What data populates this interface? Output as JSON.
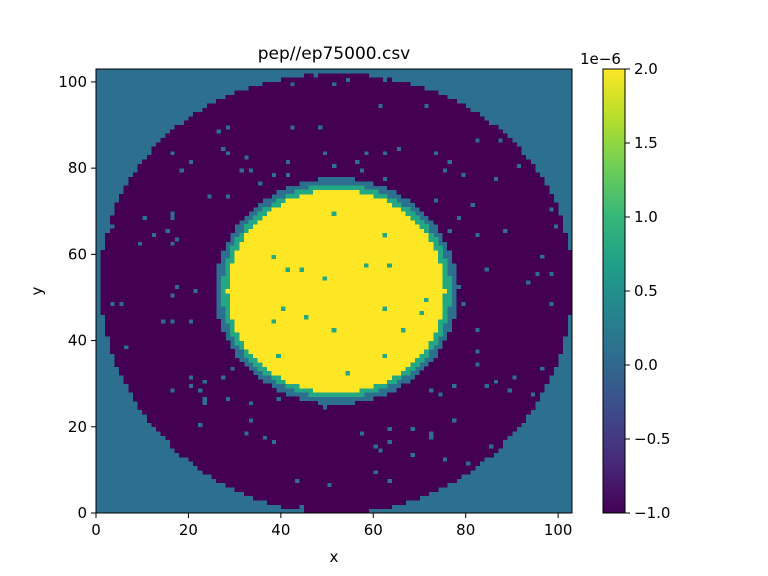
{
  "chart_data": {
    "type": "heatmap",
    "title": "pep//ep75000.csv",
    "xlabel": "x",
    "ylabel": "y",
    "xlim": [
      0,
      103
    ],
    "ylim": [
      0,
      103
    ],
    "x_ticks": [
      0,
      20,
      40,
      60,
      80,
      100
    ],
    "y_ticks": [
      0,
      20,
      40,
      60,
      80,
      100
    ],
    "x_tick_labels": [
      "0",
      "20",
      "40",
      "60",
      "80",
      "100"
    ],
    "y_tick_labels": [
      "0",
      "20",
      "40",
      "60",
      "80",
      "100"
    ],
    "colormap": "viridis",
    "colorbar": {
      "range": [
        -1.0,
        2.0
      ],
      "multiplier_label": "1e−6",
      "ticks": [
        -1.0,
        -0.5,
        0.0,
        0.5,
        1.0,
        1.5,
        2.0
      ],
      "tick_labels": [
        "−1.0",
        "−0.5",
        "0.0",
        "0.5",
        "1.0",
        "1.5",
        "2.0"
      ],
      "placement": "right"
    },
    "field": {
      "center": [
        52,
        51.5
      ],
      "outer_region_value": 0.0,
      "ring_value": -1.0,
      "ring_outer_radius": 51,
      "transition_band_values": [
        0.0,
        0.5
      ],
      "core_value": 2.0,
      "core_radius": 23.5,
      "core_edge_inner_value": 0.5,
      "core_edge_inner_width": 1.2,
      "core_edge_outer_width": 2.8
    },
    "colors": {
      "v_minus_1": "#440154",
      "v_0": "#2c6f8e",
      "v_0_5": "#23a883",
      "v_2": "#fde725"
    }
  }
}
